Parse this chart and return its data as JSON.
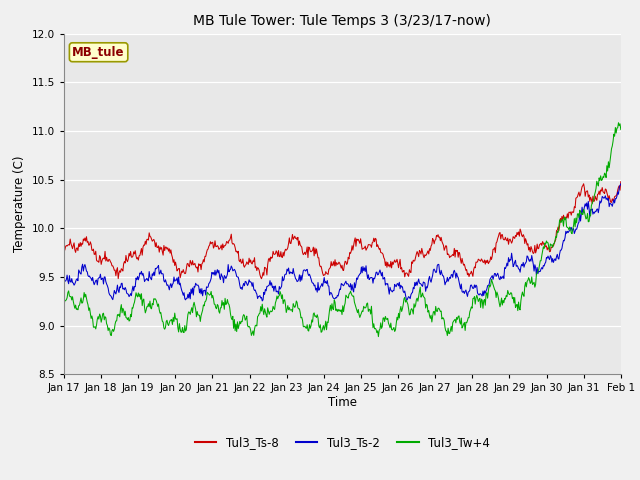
{
  "title": "MB Tule Tower: Tule Temps 3 (3/23/17-now)",
  "ylabel": "Temperature (C)",
  "xlabel": "Time",
  "ylim": [
    8.5,
    12.0
  ],
  "series_labels": [
    "Tul3_Ts-8",
    "Tul3_Ts-2",
    "Tul3_Tw+4"
  ],
  "series_colors": [
    "#cc0000",
    "#0000cc",
    "#00aa00"
  ],
  "xtick_labels": [
    "Jan 17",
    "Jan 18",
    "Jan 19",
    "Jan 20",
    "Jan 21",
    "Jan 22",
    "Jan 23",
    "Jan 24",
    "Jan 25",
    "Jan 26",
    "Jan 27",
    "Jan 28",
    "Jan 29",
    "Jan 30",
    "Jan 31",
    "Feb 1"
  ],
  "n_points": 720,
  "seed": 42
}
